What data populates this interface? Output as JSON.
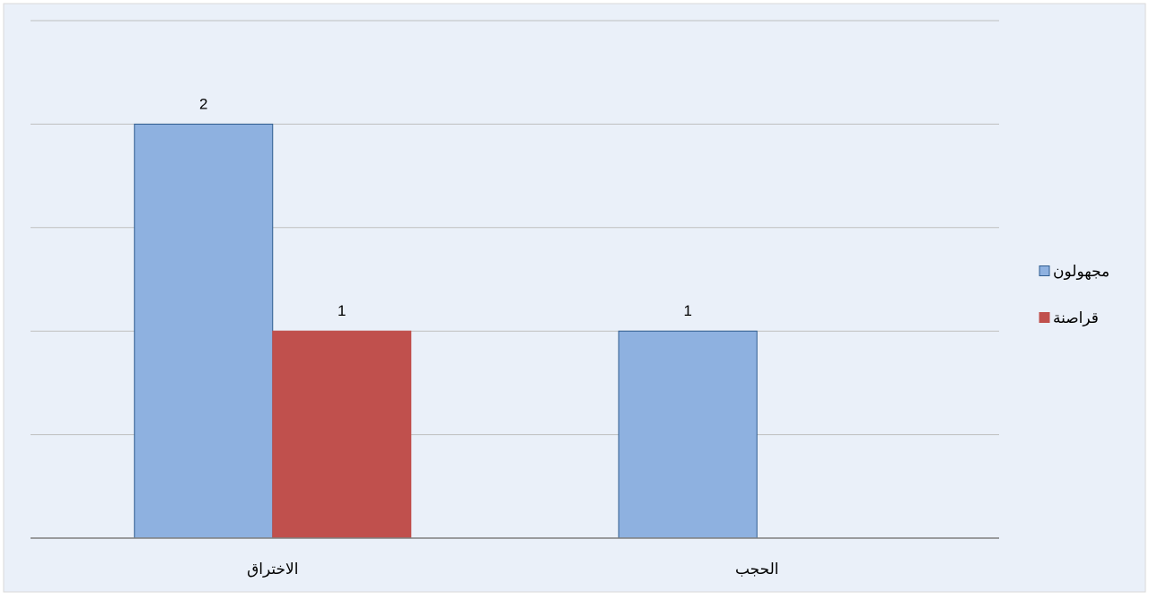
{
  "chart_data": {
    "type": "bar",
    "categories": [
      "الاختراق",
      "الحجب"
    ],
    "series": [
      {
        "name": "مجهولون",
        "values": [
          2,
          1
        ],
        "color": "#8EB1E0",
        "stroke": "#2F5C8F"
      },
      {
        "name": "قراصنة",
        "values": [
          1,
          null
        ],
        "color": "#C0504D",
        "stroke": "#C0504D"
      }
    ],
    "ylim": [
      0,
      2.5
    ],
    "ytick_step": 0.5,
    "grid": true,
    "legend_position": "right",
    "data_labels": true,
    "background": "#EAF0F9",
    "border": "#D9D9D9"
  }
}
